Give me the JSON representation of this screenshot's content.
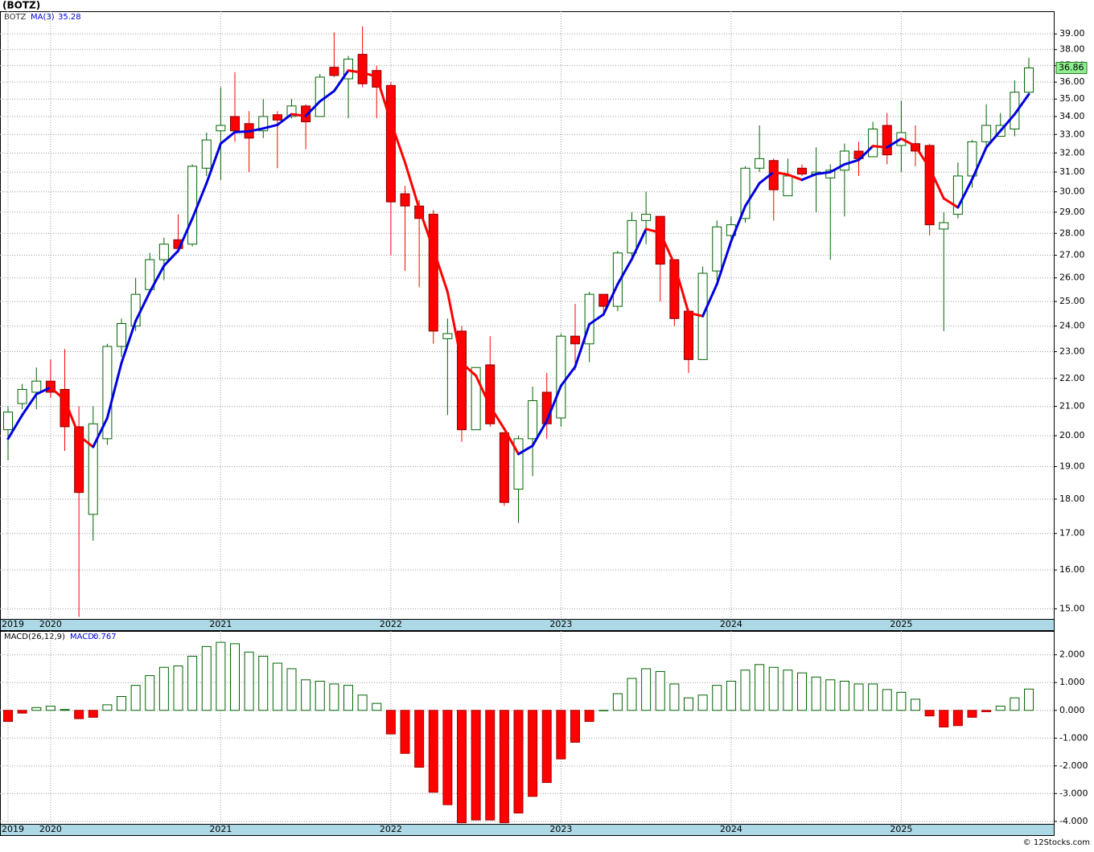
{
  "chart_data": [
    {
      "type": "candlestick",
      "title": "(BOTZ)",
      "ticker": "BOTZ",
      "source": "© 12Stocks.com",
      "categories": [
        "2019",
        null,
        null,
        "2020",
        null,
        null,
        null,
        null,
        null,
        null,
        null,
        null,
        null,
        null,
        null,
        "2021",
        null,
        null,
        null,
        null,
        null,
        null,
        null,
        null,
        null,
        null,
        null,
        "2022",
        null,
        null,
        null,
        null,
        null,
        null,
        null,
        null,
        null,
        null,
        null,
        "2023",
        null,
        null,
        null,
        null,
        null,
        null,
        null,
        null,
        null,
        null,
        null,
        "2024",
        null,
        null,
        null,
        null,
        null,
        null,
        null,
        null,
        null,
        null,
        null,
        "2025",
        null,
        null,
        null,
        null,
        null,
        null,
        null,
        null,
        null
      ],
      "open": [
        20.2,
        21.1,
        21.5,
        21.9,
        21.6,
        20.3,
        17.55,
        19.9,
        23.2,
        24.0,
        25.5,
        26.8,
        27.7,
        27.5,
        31.2,
        33.2,
        34.0,
        33.6,
        33.2,
        34.1,
        34.0,
        34.6,
        34.0,
        36.9,
        36.2,
        37.7,
        36.7,
        35.8,
        29.9,
        29.3,
        28.9,
        23.5,
        23.8,
        20.2,
        22.5,
        20.1,
        18.3,
        19.9,
        21.5,
        20.6,
        23.6,
        23.3,
        25.3,
        24.8,
        27.1,
        28.6,
        28.8,
        26.8,
        24.6,
        22.7,
        26.3,
        27.9,
        28.7,
        31.2,
        31.6,
        29.8,
        31.2,
        30.9,
        30.7,
        31.1,
        32.1,
        31.8,
        33.5,
        32.4,
        32.5,
        32.4,
        28.2,
        28.9,
        30.8,
        32.6,
        32.9,
        33.3,
        35.4
      ],
      "high": [
        21.0,
        21.8,
        22.4,
        22.7,
        23.1,
        21.0,
        21.0,
        23.3,
        24.3,
        26.0,
        27.1,
        27.8,
        28.9,
        31.4,
        33.1,
        35.7,
        36.6,
        34.3,
        35.0,
        34.3,
        35.0,
        34.7,
        36.5,
        39.1,
        37.6,
        39.5,
        37.0,
        36.0,
        30.3,
        29.6,
        29.1,
        24.3,
        24.0,
        22.4,
        23.6,
        20.1,
        20.0,
        21.7,
        22.2,
        23.7,
        24.9,
        25.4,
        25.3,
        27.2,
        29.0,
        30.0,
        28.8,
        26.8,
        24.7,
        26.5,
        28.6,
        28.8,
        31.3,
        33.5,
        31.7,
        31.7,
        31.4,
        32.3,
        31.4,
        32.5,
        32.6,
        33.7,
        34.2,
        34.9,
        33.5,
        32.5,
        29.0,
        31.5,
        32.7,
        34.7,
        34.2,
        36.1,
        37.5
      ],
      "low": [
        19.2,
        20.9,
        20.9,
        21.3,
        19.5,
        14.8,
        16.8,
        19.7,
        22.8,
        23.8,
        25.4,
        25.9,
        27.1,
        27.4,
        30.8,
        30.6,
        32.6,
        31.0,
        32.8,
        31.2,
        33.9,
        32.2,
        34.0,
        36.3,
        33.9,
        35.7,
        33.9,
        27.0,
        26.3,
        25.6,
        23.3,
        20.7,
        19.8,
        20.2,
        20.3,
        17.8,
        17.3,
        18.7,
        19.9,
        20.3,
        22.3,
        22.6,
        24.4,
        24.6,
        26.9,
        27.5,
        25.0,
        24.0,
        22.2,
        22.7,
        25.9,
        27.6,
        28.5,
        31.0,
        28.6,
        29.8,
        30.8,
        29.0,
        26.8,
        28.8,
        30.8,
        31.8,
        31.4,
        31.0,
        31.3,
        27.9,
        23.8,
        28.7,
        30.2,
        32.3,
        32.9,
        32.9,
        35.3
      ],
      "close": [
        20.8,
        21.6,
        21.9,
        21.5,
        20.3,
        18.2,
        20.4,
        23.2,
        24.1,
        25.3,
        26.8,
        27.5,
        27.3,
        31.3,
        32.7,
        33.5,
        33.2,
        32.8,
        34.0,
        33.8,
        34.6,
        33.7,
        36.3,
        36.4,
        37.4,
        35.9,
        35.7,
        29.5,
        29.3,
        28.7,
        23.8,
        23.7,
        20.2,
        22.4,
        20.4,
        17.9,
        19.9,
        21.2,
        20.4,
        23.6,
        23.3,
        25.3,
        24.8,
        27.1,
        28.6,
        28.9,
        26.6,
        24.3,
        22.7,
        26.2,
        28.3,
        28.4,
        31.2,
        31.7,
        30.1,
        30.8,
        30.9,
        31.0,
        31.1,
        32.1,
        31.7,
        33.3,
        31.9,
        33.1,
        32.1,
        28.4,
        28.5,
        30.8,
        32.6,
        33.5,
        33.5,
        35.4,
        36.86
      ],
      "up_color": "#006400",
      "down_color": "#ff0000",
      "ma": {
        "name": "MA(3)",
        "up_color": "#0000dd",
        "down_color": "#ff0000",
        "values": [
          19.9,
          20.7,
          21.43,
          21.67,
          21.23,
          20.0,
          19.63,
          20.6,
          22.57,
          24.2,
          25.4,
          26.53,
          27.2,
          28.7,
          30.43,
          32.5,
          33.13,
          33.17,
          33.33,
          33.53,
          34.13,
          34.03,
          34.87,
          35.47,
          36.7,
          36.57,
          36.33,
          33.7,
          31.5,
          29.17,
          27.27,
          25.4,
          22.57,
          22.1,
          21.0,
          20.23,
          19.4,
          19.67,
          20.5,
          21.73,
          22.43,
          24.07,
          24.47,
          25.73,
          26.83,
          28.2,
          28.03,
          26.6,
          24.53,
          24.4,
          25.73,
          27.63,
          29.3,
          30.43,
          31.0,
          30.87,
          30.6,
          30.9,
          31.0,
          31.4,
          31.63,
          32.37,
          32.3,
          32.77,
          32.37,
          31.2,
          29.67,
          29.23,
          30.63,
          32.3,
          33.2,
          34.13,
          35.28
        ]
      },
      "log_scale": true,
      "ylim": [
        14.75,
        40.5
      ],
      "grid": true,
      "yticks": [
        {
          "value": 15,
          "label": "15.00"
        },
        {
          "value": 16,
          "label": "16.00"
        },
        {
          "value": 17,
          "label": "17.00"
        },
        {
          "value": 18,
          "label": "18.00"
        },
        {
          "value": 19,
          "label": "19.00"
        },
        {
          "value": 20,
          "label": "20.00"
        },
        {
          "value": 21,
          "label": "21.00"
        },
        {
          "value": 22,
          "label": "22.00"
        },
        {
          "value": 23,
          "label": "23.00"
        },
        {
          "value": 24,
          "label": "24.00"
        },
        {
          "value": 25,
          "label": "25.00"
        },
        {
          "value": 26,
          "label": "26.00"
        },
        {
          "value": 27,
          "label": "27.00"
        },
        {
          "value": 28,
          "label": "28.00"
        },
        {
          "value": 29,
          "label": "29.00"
        },
        {
          "value": 30,
          "label": "30.00"
        },
        {
          "value": 31,
          "label": "31.00"
        },
        {
          "value": 32,
          "label": "32.00"
        },
        {
          "value": 33,
          "label": "33.00"
        },
        {
          "value": 34,
          "label": "34.00"
        },
        {
          "value": 35,
          "label": "35.00"
        },
        {
          "value": 36,
          "label": "36.00"
        },
        {
          "value": 37,
          "label": "37.00"
        },
        {
          "value": 38,
          "label": "38.00"
        },
        {
          "value": 39,
          "label": "39.00"
        }
      ],
      "last_price_color": "#90ee90"
    },
    {
      "type": "bar",
      "name": "MACD(26,12,9)",
      "value_label": "MACD:",
      "values": [
        -0.4,
        -0.1,
        0.1,
        0.15,
        0.03,
        -0.3,
        -0.25,
        0.2,
        0.5,
        0.9,
        1.25,
        1.55,
        1.6,
        1.95,
        2.3,
        2.45,
        2.4,
        2.1,
        1.95,
        1.7,
        1.5,
        1.1,
        1.05,
        0.95,
        0.9,
        0.55,
        0.25,
        -0.85,
        -1.55,
        -2.05,
        -2.95,
        -3.4,
        -4.05,
        -3.95,
        -3.95,
        -4.05,
        -3.7,
        -3.1,
        -2.6,
        -1.75,
        -1.15,
        -0.4,
        0.0,
        0.6,
        1.15,
        1.5,
        1.4,
        0.95,
        0.45,
        0.55,
        0.9,
        1.05,
        1.45,
        1.65,
        1.55,
        1.45,
        1.35,
        1.2,
        1.1,
        1.05,
        0.95,
        0.95,
        0.75,
        0.65,
        0.4,
        -0.2,
        -0.6,
        -0.55,
        -0.25,
        -0.05,
        0.15,
        0.45,
        0.767
      ],
      "positive_color": "#006400",
      "negative_color": "#ff0000",
      "ylim": [
        -4.09,
        2.86
      ],
      "grid": true,
      "yticks": [
        {
          "value": -4,
          "label": "-4.000"
        },
        {
          "value": -3,
          "label": "-3.000"
        },
        {
          "value": -2,
          "label": "-2.000"
        },
        {
          "value": -1,
          "label": "-1.000"
        },
        {
          "value": 0,
          "label": "0.000"
        },
        {
          "value": 1,
          "label": "1.000"
        },
        {
          "value": 2,
          "label": "2.000"
        }
      ]
    }
  ]
}
